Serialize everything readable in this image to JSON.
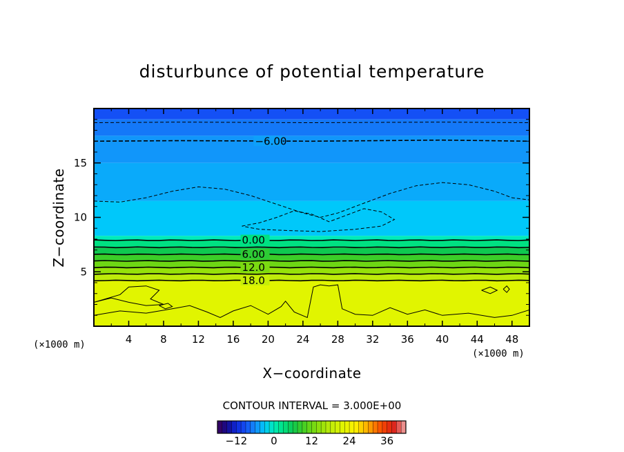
{
  "chart_data": {
    "type": "contour",
    "title": "disturbunce of potential temperature",
    "xlabel": "X−coordinate",
    "ylabel": "Z−coordinate",
    "x_unit": "(×1000 m)",
    "z_unit": "(×1000 m)",
    "xlim": [
      0,
      50
    ],
    "zlim": [
      0,
      20
    ],
    "x_ticks": [
      4,
      8,
      12,
      16,
      20,
      24,
      28,
      32,
      36,
      40,
      44,
      48
    ],
    "z_ticks": [
      5,
      10,
      15
    ],
    "contour_interval_text": "CONTOUR INTERVAL = 3.000E+00",
    "contour_labels": [
      {
        "text": "−6.00",
        "x": 18.5,
        "z": 17.0
      },
      {
        "text": "0.00",
        "x": 17.0,
        "z": 7.9
      },
      {
        "text": "6.00",
        "x": 17.0,
        "z": 6.6
      },
      {
        "text": "12.0",
        "x": 17.0,
        "z": 5.4
      },
      {
        "text": "18.0",
        "x": 17.0,
        "z": 4.2
      }
    ],
    "colorbar": {
      "min": -18,
      "max": 42,
      "step": 1.5,
      "ticks": [
        -12,
        0,
        12,
        24,
        36
      ],
      "tick_labels": [
        "−12",
        "0",
        "12",
        "24",
        "36"
      ]
    },
    "field_bands": [
      {
        "z_from": 19.0,
        "z_to": 20.0,
        "value": -9
      },
      {
        "z_from": 17.5,
        "z_to": 19.0,
        "value": -7
      },
      {
        "z_from": 15.0,
        "z_to": 17.5,
        "value": -5.5
      },
      {
        "z_from": 11.5,
        "z_to": 15.0,
        "value": -4.5
      },
      {
        "z_from": 8.3,
        "z_to": 11.5,
        "value": -3
      },
      {
        "z_from": 7.9,
        "z_to": 8.3,
        "value": 0
      },
      {
        "z_from": 7.2,
        "z_to": 7.9,
        "value": 3
      },
      {
        "z_from": 6.6,
        "z_to": 7.2,
        "value": 6
      },
      {
        "z_from": 6.0,
        "z_to": 6.6,
        "value": 9
      },
      {
        "z_from": 5.4,
        "z_to": 6.0,
        "value": 12
      },
      {
        "z_from": 4.8,
        "z_to": 5.4,
        "value": 15
      },
      {
        "z_from": 4.2,
        "z_to": 4.8,
        "value": 18
      },
      {
        "z_from": 0.0,
        "z_to": 4.2,
        "value": 22
      }
    ],
    "solid_contours": [
      {
        "value": 0,
        "z": 7.9
      },
      {
        "value": 3,
        "z": 7.25
      },
      {
        "value": 6,
        "z": 6.6
      },
      {
        "value": 9,
        "z": 6.0
      },
      {
        "value": 12,
        "z": 5.4
      },
      {
        "value": 15,
        "z": 4.8
      },
      {
        "value": 18,
        "z": 4.2
      }
    ],
    "dashed_contours": [
      {
        "value": -9,
        "points": [
          [
            0,
            18.7
          ],
          [
            10,
            18.75
          ],
          [
            25,
            18.7
          ],
          [
            40,
            18.75
          ],
          [
            50,
            18.7
          ]
        ]
      },
      {
        "value": -6,
        "points": [
          [
            0,
            17.0
          ],
          [
            10,
            17.05
          ],
          [
            25,
            17.0
          ],
          [
            40,
            17.1
          ],
          [
            50,
            17.0
          ]
        ]
      },
      {
        "value": -3,
        "points": [
          [
            0,
            11.5
          ],
          [
            3,
            11.4
          ],
          [
            6,
            11.8
          ],
          [
            9,
            12.4
          ],
          [
            12,
            12.8
          ],
          [
            15,
            12.6
          ],
          [
            18,
            12.0
          ],
          [
            21,
            11.2
          ],
          [
            24,
            10.4
          ],
          [
            26,
            10.0
          ],
          [
            28,
            10.4
          ],
          [
            31,
            11.3
          ],
          [
            34,
            12.2
          ],
          [
            37,
            12.9
          ],
          [
            40,
            13.2
          ],
          [
            43,
            13.0
          ],
          [
            46,
            12.4
          ],
          [
            48,
            11.8
          ],
          [
            50,
            11.6
          ]
        ]
      },
      {
        "value": -3,
        "points": [
          [
            17,
            9.2
          ],
          [
            19,
            9.5
          ],
          [
            21,
            10.0
          ],
          [
            23,
            10.6
          ],
          [
            25,
            10.3
          ],
          [
            27,
            9.6
          ],
          [
            29,
            10.2
          ],
          [
            31,
            10.8
          ],
          [
            33,
            10.5
          ],
          [
            34.5,
            9.8
          ],
          [
            33,
            9.2
          ],
          [
            30,
            8.9
          ],
          [
            26,
            8.7
          ],
          [
            22,
            8.8
          ],
          [
            19,
            8.9
          ],
          [
            17,
            9.2
          ]
        ]
      }
    ],
    "surface_contours": [
      {
        "value": 21,
        "points": [
          [
            0,
            1.0
          ],
          [
            3,
            1.4
          ],
          [
            6,
            1.2
          ],
          [
            9,
            1.6
          ],
          [
            11,
            1.9
          ],
          [
            13,
            1.3
          ],
          [
            14.5,
            0.8
          ],
          [
            16,
            1.4
          ],
          [
            18,
            1.9
          ],
          [
            20,
            1.1
          ],
          [
            21.5,
            1.8
          ],
          [
            22,
            2.3
          ],
          [
            23,
            1.3
          ],
          [
            24.5,
            0.8
          ],
          [
            25.2,
            3.6
          ],
          [
            26,
            3.8
          ],
          [
            27,
            3.7
          ],
          [
            28,
            3.8
          ],
          [
            28.5,
            1.6
          ],
          [
            30,
            1.1
          ],
          [
            32,
            1.0
          ],
          [
            34,
            1.7
          ],
          [
            36,
            1.1
          ],
          [
            38,
            1.5
          ],
          [
            40,
            1.0
          ],
          [
            43,
            1.2
          ],
          [
            46,
            0.8
          ],
          [
            48,
            1.0
          ],
          [
            50,
            1.5
          ]
        ]
      },
      {
        "value": 21,
        "points": [
          [
            0,
            2.2
          ],
          [
            3,
            2.9
          ],
          [
            4,
            3.6
          ],
          [
            6,
            3.7
          ],
          [
            7.5,
            3.3
          ],
          [
            6.5,
            2.5
          ],
          [
            8,
            2.0
          ],
          [
            6,
            1.9
          ],
          [
            4,
            2.2
          ],
          [
            2,
            2.6
          ],
          [
            0,
            2.2
          ]
        ]
      },
      {
        "value": 21,
        "points": [
          [
            44.5,
            3.3
          ],
          [
            45.5,
            3.6
          ],
          [
            46.3,
            3.3
          ],
          [
            45.5,
            3.0
          ],
          [
            44.5,
            3.3
          ]
        ]
      },
      {
        "value": 21,
        "points": [
          [
            47.0,
            3.4
          ],
          [
            47.4,
            3.7
          ],
          [
            47.7,
            3.4
          ],
          [
            47.4,
            3.1
          ],
          [
            47.0,
            3.4
          ]
        ]
      },
      {
        "value": 21,
        "points": [
          [
            7.5,
            1.9
          ],
          [
            8.5,
            2.1
          ],
          [
            9.0,
            1.8
          ],
          [
            8.2,
            1.6
          ],
          [
            7.5,
            1.9
          ]
        ]
      }
    ]
  }
}
